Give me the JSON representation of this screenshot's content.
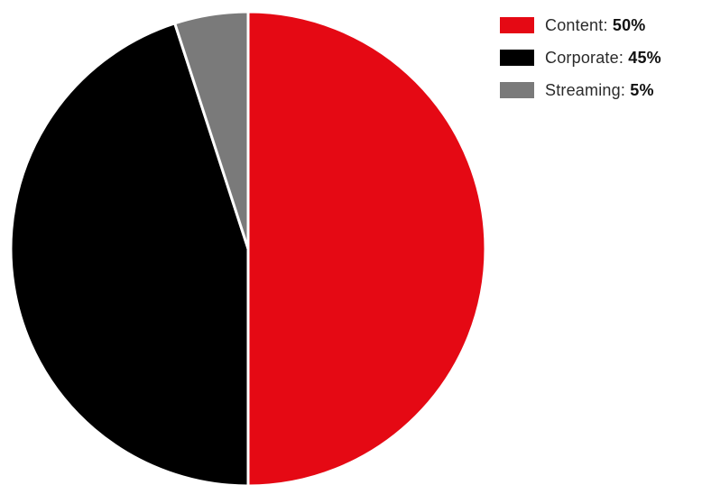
{
  "chart_data": {
    "type": "pie",
    "title": "",
    "legend_position": "top-right",
    "slices": [
      {
        "label": "Content",
        "value": 50,
        "value_label": "50%",
        "color": "#E50914"
      },
      {
        "label": "Corporate",
        "value": 45,
        "value_label": "45%",
        "color": "#000000"
      },
      {
        "label": "Streaming",
        "value": 5,
        "value_label": "5%",
        "color": "#7A7A7A"
      }
    ]
  },
  "legend": {
    "items": [
      {
        "label": "Content:",
        "value": "50%",
        "color": "#E50914"
      },
      {
        "label": "Corporate:",
        "value": "45%",
        "color": "#000000"
      },
      {
        "label": "Streaming:",
        "value": "5%",
        "color": "#7A7A7A"
      }
    ]
  }
}
